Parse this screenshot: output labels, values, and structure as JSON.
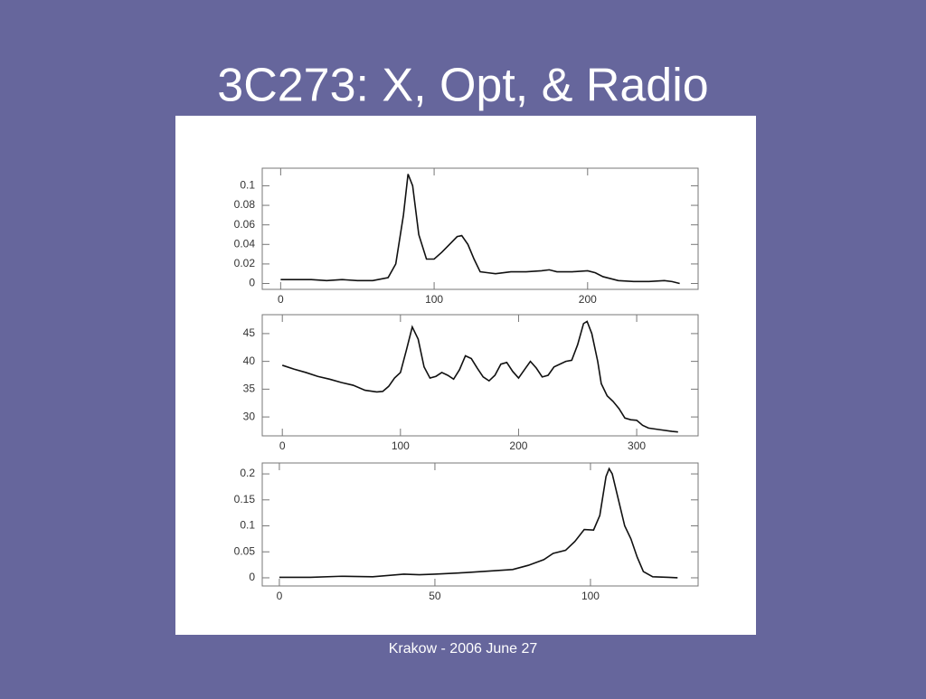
{
  "slide": {
    "title": "3C273: X, Opt, & Radio",
    "footer": "Krakow - 2006 June 27"
  },
  "chart_data": [
    {
      "type": "line",
      "color": "#111111",
      "x": [
        0,
        10,
        20,
        30,
        40,
        50,
        60,
        70,
        75,
        80,
        83,
        86,
        90,
        95,
        100,
        105,
        110,
        115,
        118,
        122,
        126,
        130,
        135,
        140,
        150,
        160,
        170,
        175,
        180,
        190,
        200,
        205,
        210,
        220,
        230,
        240,
        250,
        255,
        260
      ],
      "series": [
        {
          "values": [
            0.004,
            0.004,
            0.004,
            0.003,
            0.004,
            0.003,
            0.003,
            0.006,
            0.02,
            0.07,
            0.112,
            0.1,
            0.05,
            0.025,
            0.025,
            0.032,
            0.04,
            0.048,
            0.049,
            0.04,
            0.025,
            0.012,
            0.011,
            0.01,
            0.012,
            0.012,
            0.013,
            0.014,
            0.012,
            0.012,
            0.013,
            0.011,
            0.007,
            0.003,
            0.002,
            0.002,
            0.003,
            0.002,
            0.0
          ]
        }
      ],
      "xlim": [
        -12,
        272
      ],
      "xticks": [
        0,
        100,
        200
      ],
      "ylim": [
        -0.006,
        0.118
      ],
      "yticks": [
        0,
        0.02,
        0.04,
        0.06,
        0.08,
        0.1
      ]
    },
    {
      "type": "line",
      "color": "#111111",
      "x": [
        0,
        10,
        20,
        30,
        40,
        50,
        60,
        70,
        80,
        85,
        90,
        95,
        100,
        105,
        110,
        115,
        120,
        125,
        130,
        135,
        140,
        145,
        150,
        155,
        160,
        165,
        170,
        175,
        180,
        185,
        190,
        195,
        200,
        205,
        210,
        215,
        220,
        225,
        230,
        240,
        245,
        250,
        255,
        258,
        262,
        267,
        270,
        275,
        280,
        285,
        290,
        295,
        300,
        305,
        310,
        320,
        330,
        335
      ],
      "series": [
        {
          "values": [
            39.3,
            38.6,
            38,
            37.3,
            36.8,
            36.2,
            35.7,
            34.8,
            34.5,
            34.6,
            35.5,
            37,
            38,
            42,
            46.2,
            44,
            39,
            37,
            37.3,
            38,
            37.5,
            36.8,
            38.5,
            41,
            40.5,
            38.8,
            37.2,
            36.5,
            37.5,
            39.5,
            39.8,
            38.2,
            37,
            38.5,
            40,
            38.8,
            37.2,
            37.5,
            39,
            40,
            40.2,
            43,
            46.8,
            47.2,
            45,
            40,
            36,
            33.8,
            32.8,
            31.5,
            29.8,
            29.5,
            29.4,
            28.5,
            28,
            27.7,
            27.4,
            27.3
          ]
        }
      ],
      "xlim": [
        -17,
        352
      ],
      "xticks": [
        0,
        100,
        200,
        300
      ],
      "ylim": [
        26.6,
        48.4
      ],
      "yticks": [
        30,
        35,
        40,
        45
      ]
    },
    {
      "type": "line",
      "color": "#111111",
      "x": [
        0,
        10,
        20,
        30,
        40,
        45,
        50,
        60,
        70,
        75,
        80,
        85,
        88,
        92,
        95,
        98,
        101,
        103,
        105,
        106,
        107,
        109,
        111,
        113,
        115,
        117,
        120,
        125,
        128
      ],
      "series": [
        {
          "values": [
            0.001,
            0.001,
            0.003,
            0.002,
            0.007,
            0.006,
            0.007,
            0.01,
            0.014,
            0.016,
            0.024,
            0.035,
            0.047,
            0.053,
            0.07,
            0.093,
            0.092,
            0.12,
            0.195,
            0.21,
            0.2,
            0.15,
            0.1,
            0.075,
            0.04,
            0.012,
            0.002,
            0.001,
            0.0
          ]
        }
      ],
      "xlim": [
        -5.5,
        134.6
      ],
      "xticks": [
        0,
        50,
        100
      ],
      "ylim": [
        -0.0157,
        0.221
      ],
      "yticks": [
        0,
        0.05,
        0.1,
        0.15,
        0.2
      ]
    }
  ]
}
